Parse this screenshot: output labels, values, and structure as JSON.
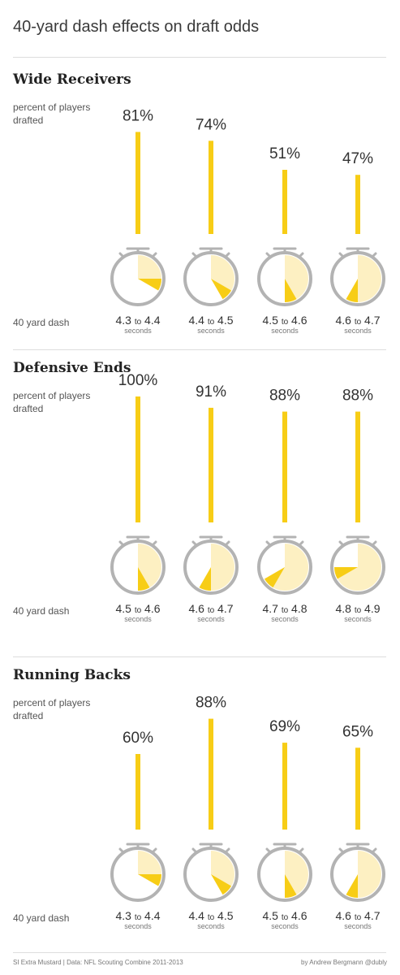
{
  "title": "40-yard dash effects on draft odds",
  "colors": {
    "bar": "#f7cd16",
    "wedge": "#f7cd16",
    "face": "#fdf0c2",
    "ring": "#b3b3b3"
  },
  "chart_data": [
    {
      "type": "bar",
      "title": "Wide Receivers",
      "ylabel": "percent of players drafted",
      "xlabel": "40 yard dash",
      "ylim": [
        0,
        100
      ],
      "categories": [
        {
          "from": "4.3",
          "to_word": "to",
          "upto": "4.4",
          "unit": "seconds"
        },
        {
          "from": "4.4",
          "to_word": "to",
          "upto": "4.5",
          "unit": "seconds"
        },
        {
          "from": "4.5",
          "to_word": "to",
          "upto": "4.6",
          "unit": "seconds"
        },
        {
          "from": "4.6",
          "to_word": "to",
          "upto": "4.7",
          "unit": "seconds"
        }
      ],
      "values": [
        81,
        74,
        51,
        47
      ],
      "labels": [
        "81%",
        "74%",
        "51%",
        "47%"
      ]
    },
    {
      "type": "bar",
      "title": "Defensive Ends",
      "ylabel": "percent of players drafted",
      "xlabel": "40 yard dash",
      "ylim": [
        0,
        100
      ],
      "categories": [
        {
          "from": "4.5",
          "to_word": "to",
          "upto": "4.6",
          "unit": "seconds"
        },
        {
          "from": "4.6",
          "to_word": "to",
          "upto": "4.7",
          "unit": "seconds"
        },
        {
          "from": "4.7",
          "to_word": "to",
          "upto": "4.8",
          "unit": "seconds"
        },
        {
          "from": "4.8",
          "to_word": "to",
          "upto": "4.9",
          "unit": "seconds"
        }
      ],
      "values": [
        100,
        91,
        88,
        88
      ],
      "labels": [
        "100%",
        "91%",
        "88%",
        "88%"
      ]
    },
    {
      "type": "bar",
      "title": "Running Backs",
      "ylabel": "percent of players drafted",
      "xlabel": "40 yard dash",
      "ylim": [
        0,
        100
      ],
      "categories": [
        {
          "from": "4.3",
          "to_word": "to",
          "upto": "4.4",
          "unit": "seconds"
        },
        {
          "from": "4.4",
          "to_word": "to",
          "upto": "4.5",
          "unit": "seconds"
        },
        {
          "from": "4.5",
          "to_word": "to",
          "upto": "4.6",
          "unit": "seconds"
        },
        {
          "from": "4.6",
          "to_word": "to",
          "upto": "4.7",
          "unit": "seconds"
        }
      ],
      "values": [
        60,
        88,
        69,
        65
      ],
      "labels": [
        "60%",
        "88%",
        "69%",
        "65%"
      ]
    }
  ],
  "footer": {
    "left": "SI Extra Mustard | Data: NFL Scouting Combine 2011-2013",
    "right": "by Andrew Bergmann @dubly"
  }
}
